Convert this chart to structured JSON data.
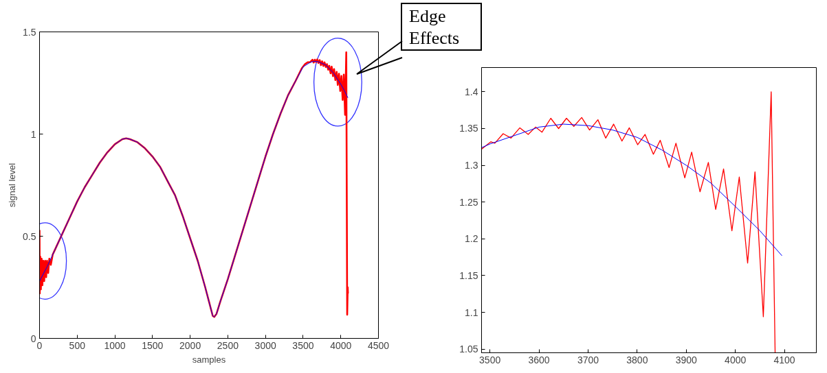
{
  "chart_data": [
    {
      "type": "line",
      "xlabel": "samples",
      "ylabel": "signal level",
      "xlim": [
        0,
        4500
      ],
      "ylim": [
        0,
        1.5
      ],
      "xticks": [
        0,
        500,
        1000,
        1500,
        2000,
        2500,
        3000,
        3500,
        4000,
        4500
      ],
      "yticks": [
        0,
        0.5,
        1,
        1.5
      ],
      "series": [
        {
          "color": "#0000ff",
          "x": [
            0,
            100,
            200,
            300,
            400,
            500,
            600,
            700,
            800,
            900,
            1000,
            1100,
            1150,
            1200,
            1300,
            1400,
            1500,
            1600,
            1700,
            1800,
            1900,
            2000,
            2100,
            2200,
            2250,
            2300,
            2320,
            2350,
            2400,
            2500,
            2600,
            2700,
            2800,
            2900,
            3000,
            3100,
            3200,
            3300,
            3400,
            3500,
            3600,
            3650,
            3700,
            3800,
            3900,
            4000,
            4050,
            4095
          ],
          "values": [
            0.28,
            0.35,
            0.43,
            0.51,
            0.59,
            0.67,
            0.74,
            0.8,
            0.86,
            0.91,
            0.95,
            0.975,
            0.979,
            0.975,
            0.96,
            0.93,
            0.89,
            0.84,
            0.77,
            0.7,
            0.6,
            0.49,
            0.38,
            0.25,
            0.18,
            0.11,
            0.105,
            0.12,
            0.18,
            0.29,
            0.41,
            0.53,
            0.65,
            0.77,
            0.89,
            1.0,
            1.1,
            1.19,
            1.26,
            1.329,
            1.352,
            1.356,
            1.354,
            1.338,
            1.3,
            1.244,
            1.211,
            1.177
          ]
        },
        {
          "color": "#ff0000",
          "x": [
            0,
            3,
            10,
            18,
            28,
            38,
            50,
            62,
            75,
            88,
            100,
            115,
            130,
            150,
            175,
            200,
            300,
            400,
            500,
            600,
            700,
            800,
            900,
            1000,
            1100,
            1150,
            1200,
            1300,
            1400,
            1500,
            1600,
            1700,
            1800,
            1900,
            2000,
            2100,
            2200,
            2250,
            2300,
            2320,
            2350,
            2400,
            2500,
            2600,
            2700,
            2800,
            2900,
            3000,
            3100,
            3200,
            3300,
            3400,
            3483,
            3527,
            3561,
            3593,
            3624,
            3640,
            3656,
            3671,
            3687,
            3703,
            3720,
            3736,
            3752,
            3769,
            3784,
            3801,
            3816,
            3833,
            3847,
            3865,
            3879,
            3897,
            3911,
            3928,
            3945,
            3960,
            3976,
            3993,
            4008,
            4025,
            4040,
            4057,
            4073,
            4085,
            4092,
            4095
          ],
          "values": [
            0.53,
            0.22,
            0.4,
            0.24,
            0.39,
            0.26,
            0.38,
            0.28,
            0.38,
            0.3,
            0.38,
            0.32,
            0.39,
            0.36,
            0.41,
            0.43,
            0.51,
            0.59,
            0.67,
            0.74,
            0.8,
            0.86,
            0.91,
            0.95,
            0.975,
            0.979,
            0.975,
            0.96,
            0.93,
            0.89,
            0.84,
            0.77,
            0.7,
            0.6,
            0.49,
            0.38,
            0.25,
            0.18,
            0.11,
            0.105,
            0.12,
            0.18,
            0.29,
            0.41,
            0.53,
            0.65,
            0.77,
            0.89,
            1.0,
            1.1,
            1.19,
            1.26,
            1.322,
            1.343,
            1.351,
            1.352,
            1.364,
            1.35,
            1.364,
            1.353,
            1.365,
            1.348,
            1.362,
            1.337,
            1.356,
            1.333,
            1.351,
            1.328,
            1.342,
            1.315,
            1.334,
            1.297,
            1.33,
            1.283,
            1.318,
            1.264,
            1.304,
            1.24,
            1.295,
            1.211,
            1.284,
            1.167,
            1.291,
            1.094,
            1.4,
            0.116,
            0.25,
            0.22
          ]
        }
      ],
      "annotations": [
        "Edge Effects"
      ]
    },
    {
      "type": "line",
      "xlim": [
        3483,
        4165
      ],
      "ylim": [
        1.045,
        1.433
      ],
      "xticks": [
        3500,
        3600,
        3700,
        3800,
        3900,
        4000,
        4100
      ],
      "yticks": [
        1.05,
        1.1,
        1.15,
        1.2,
        1.25,
        1.3,
        1.35,
        1.4
      ],
      "series": [
        {
          "color": "#0000ff",
          "x": [
            3483,
            3500,
            3600,
            3650,
            3700,
            3750,
            3800,
            3850,
            3900,
            3950,
            4000,
            4050,
            4095
          ],
          "values": [
            1.324,
            1.329,
            1.352,
            1.356,
            1.354,
            1.348,
            1.338,
            1.321,
            1.3,
            1.276,
            1.244,
            1.211,
            1.177
          ]
        },
        {
          "color": "#ff0000",
          "x": [
            3483,
            3502,
            3510,
            3527,
            3543,
            3561,
            3578,
            3593,
            3606,
            3624,
            3640,
            3656,
            3671,
            3687,
            3703,
            3720,
            3736,
            3752,
            3769,
            3784,
            3801,
            3816,
            3833,
            3847,
            3865,
            3879,
            3897,
            3911,
            3928,
            3945,
            3960,
            3976,
            3993,
            4008,
            4025,
            4040,
            4057,
            4073,
            4081
          ],
          "values": [
            1.322,
            1.332,
            1.33,
            1.343,
            1.337,
            1.351,
            1.342,
            1.352,
            1.345,
            1.364,
            1.35,
            1.364,
            1.353,
            1.365,
            1.348,
            1.362,
            1.337,
            1.356,
            1.333,
            1.351,
            1.328,
            1.342,
            1.315,
            1.334,
            1.297,
            1.33,
            1.283,
            1.318,
            1.264,
            1.304,
            1.24,
            1.295,
            1.211,
            1.284,
            1.167,
            1.291,
            1.094,
            1.4,
            1.045
          ]
        }
      ]
    }
  ]
}
